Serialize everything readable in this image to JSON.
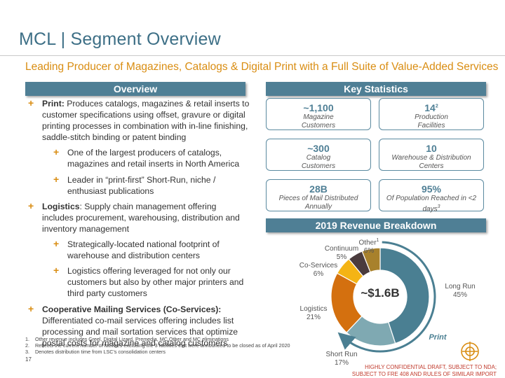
{
  "page": {
    "title": "MCL | Segment Overview",
    "subtitle": "Leading Producer of Magazines, Catalogs & Digital Print with a Full Suite of Value-Added Services",
    "page_number": "17",
    "confidential_line1": "HIGHLY CONFIDENTIAL DRAFT, SUBJECT TO NDA;",
    "confidential_line2": "SUBJECT TO FRE 408 AND RULES OF SIMILAR IMPORT"
  },
  "overview": {
    "header": "Overview",
    "bullets": [
      {
        "bold": "Print:",
        "text": " Produces catalogs, magazines & retail inserts to customer specifications using offset, gravure or digital printing processes in combination with in-line finishing, saddle-stitch binding or patent binding"
      },
      {
        "sub1": "One of the largest producers of catalogs, magazines and retail inserts in North America"
      },
      {
        "sub2": "Leader in “print-first” Short-Run, niche / enthusiast publications"
      },
      {
        "bold": "Logistics",
        "text": ": Supply chain management offering includes procurement, warehousing, distribution and inventory management"
      },
      {
        "sub1": "Strategically-located national footprint of warehouse and distribution centers"
      },
      {
        "sub2": "Logistics offering leveraged for not only our customers but also by other major printers and third party customers"
      },
      {
        "bold": "Cooperative Mailing Services (Co-Services):",
        "text": " Differentiated co-mail services offering includes list processing and mail sortation services that optimize postal costs for magazine and catalog customers"
      }
    ]
  },
  "key_stats": {
    "header": "Key Statistics",
    "items": [
      {
        "value": "~1,100",
        "sup": "",
        "desc": "Magazine Customers",
        "desc_sup": ""
      },
      {
        "value": "14",
        "sup": "2",
        "desc": "Production Facilities",
        "desc_sup": ""
      },
      {
        "value": "~300",
        "sup": "",
        "desc": "Catalog Customers",
        "desc_sup": ""
      },
      {
        "value": "10",
        "sup": "",
        "desc": "Warehouse & Distribution Centers",
        "desc_sup": ""
      },
      {
        "value": "28B",
        "sup": "",
        "desc": "Pieces of Mail Distributed Annually",
        "desc_sup": ""
      },
      {
        "value": "95%",
        "sup": "",
        "desc": "Of Population Reached in <2 days",
        "desc_sup": "3"
      }
    ]
  },
  "revenue": {
    "header": "2019 Revenue Breakdown",
    "center_label": "~$1.6B",
    "print_label": "Print"
  },
  "chart_data": {
    "type": "pie",
    "title": "2019 Revenue Breakdown",
    "total_label": "~$1.6B",
    "categories": [
      "Long Run",
      "Short Run",
      "Logistics",
      "Co-Services",
      "Continuum",
      "Other"
    ],
    "values": [
      45,
      17,
      21,
      6,
      5,
      6
    ],
    "labels": [
      "45%",
      "17%",
      "21%",
      "6%",
      "5%",
      "6%"
    ],
    "other_sup": "1",
    "colors": [
      "#4a7f92",
      "#7fa9b2",
      "#d4700f",
      "#f4b414",
      "#4a3b3d",
      "#a8812c"
    ],
    "group_annotation": "Print"
  },
  "footnotes": [
    "Other revenue includes Creel, Digital Lizard, Premedia, MC Other and MC eliminations",
    "Reflects the current number of facilities excluding the 3 facilities that were announced to be closed as of April 2020",
    "Denotes distribution time from LSC’s consolidation centers"
  ]
}
